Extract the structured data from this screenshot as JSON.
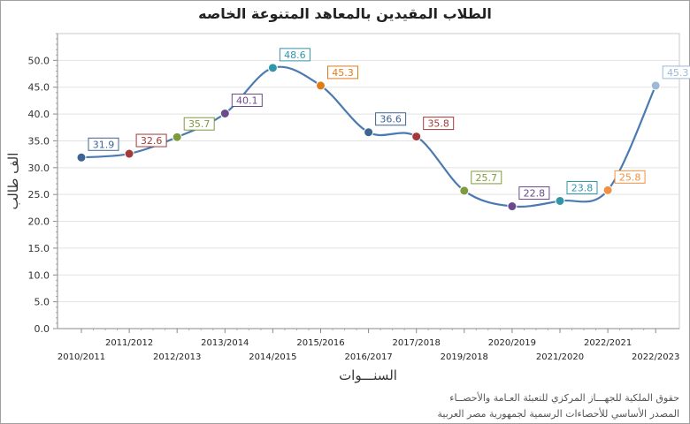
{
  "chart_data": {
    "type": "line",
    "title": "الطلاب المقيدين  بالمعاهد  المتنوعة الخاصه",
    "xlabel": "السنـــوات",
    "ylabel": "الف طالب",
    "ylim": [
      0,
      55
    ],
    "y_tick_labels": [
      "0.0",
      "5.0",
      "10.0",
      "15.0",
      "20.0",
      "25.0",
      "30.0",
      "35.0",
      "40.0",
      "45.0",
      "50.0"
    ],
    "grid": true,
    "smooth": true,
    "categories": [
      "2010/2011",
      "2011/2012",
      "2012/2013",
      "2013/2014",
      "2014/2015",
      "2015/2016",
      "2016/2017",
      "2017/2018",
      "2019/2018",
      "2020/2019",
      "2021/2020",
      "2022/2021",
      "2022/2023"
    ],
    "value_labels": [
      "31.9",
      "32.6",
      "35.7",
      "40.1",
      "48.6",
      "45.3",
      "36.6",
      "35.8",
      "25.7",
      "22.8",
      "23.8",
      "25.8",
      "45.3"
    ],
    "series": [
      {
        "values": [
          31.9,
          32.6,
          35.7,
          40.1,
          48.6,
          45.3,
          36.6,
          35.8,
          25.7,
          22.8,
          23.8,
          25.8,
          45.3
        ]
      }
    ],
    "line_color": "#4a7ab0",
    "point_colors": [
      "#3e6494",
      "#a33a38",
      "#7e9a3e",
      "#6a4a8c",
      "#3196a8",
      "#e07b1c",
      "#3e6494",
      "#a33a38",
      "#7e9a3e",
      "#6a4a8c",
      "#3196a8",
      "#f09040",
      "#9db8d8"
    ]
  },
  "credit": {
    "line1": "حقوق الملكية للجهـــاز المركزي للتعبئة العـامة والأحصــاء",
    "line2": "المصدر الأساسي للأحصاءات الرسمية لجمهورية مصر العربية"
  }
}
